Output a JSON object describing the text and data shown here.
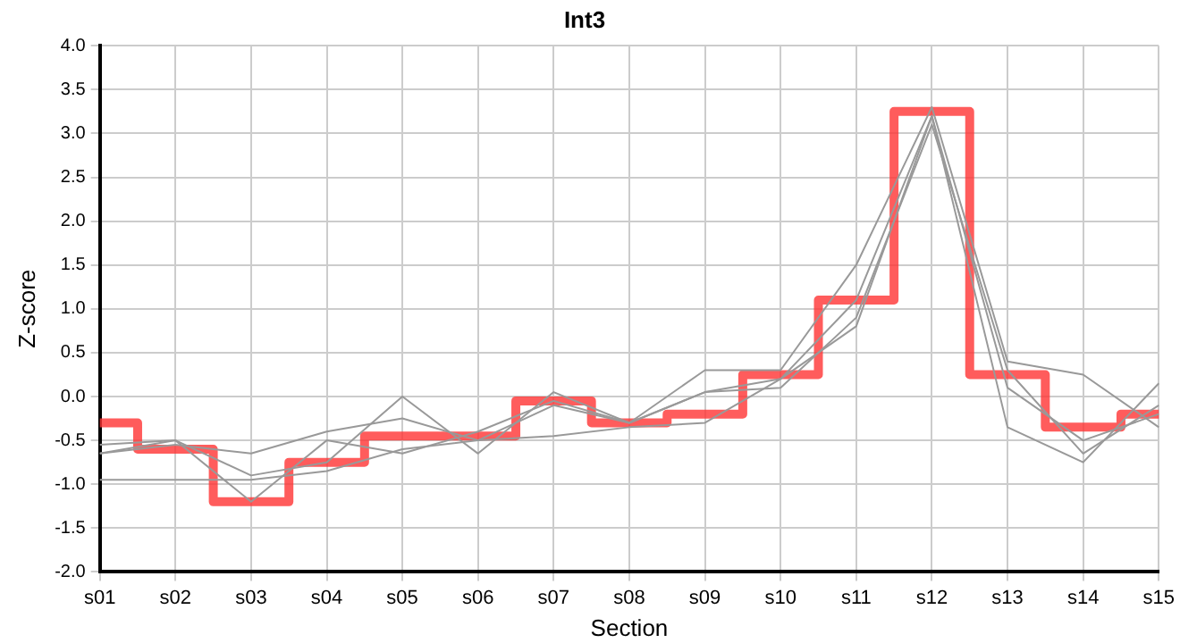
{
  "chart_data": {
    "type": "line",
    "title": "Int3",
    "xlabel": "Section",
    "ylabel": "Z-score",
    "categories": [
      "s01",
      "s02",
      "s03",
      "s04",
      "s05",
      "s06",
      "s07",
      "s08",
      "s09",
      "s10",
      "s11",
      "s12",
      "s13",
      "s14",
      "s15"
    ],
    "series": [
      {
        "color": "#999999",
        "values": [
          -0.65,
          -0.55,
          -0.65,
          -0.4,
          -0.25,
          -0.5,
          -0.1,
          -0.3,
          0.3,
          0.3,
          1.5,
          3.3,
          0.4,
          0.25,
          -0.35
        ]
      },
      {
        "color": "#999999",
        "values": [
          -0.95,
          -0.95,
          -0.95,
          -0.85,
          -0.6,
          -0.5,
          -0.45,
          -0.35,
          -0.3,
          0.2,
          0.8,
          3.2,
          -0.35,
          -0.75,
          0.15
        ]
      },
      {
        "color": "#999999",
        "values": [
          -0.55,
          -0.5,
          -1.2,
          -0.5,
          -0.65,
          -0.4,
          -0.05,
          -0.3,
          0.05,
          0.1,
          0.9,
          3.1,
          0.3,
          -0.65,
          -0.1
        ]
      },
      {
        "color": "#999999",
        "values": [
          -0.65,
          -0.5,
          -0.9,
          -0.75,
          0.0,
          -0.65,
          0.05,
          -0.3,
          0.05,
          0.2,
          1.1,
          3.2,
          0.1,
          -0.5,
          -0.2
        ]
      },
      {
        "type": "step",
        "color": "#ff3333",
        "values": [
          -0.3,
          -0.6,
          -1.2,
          -0.75,
          -0.45,
          -0.45,
          -0.05,
          -0.3,
          -0.2,
          0.25,
          1.1,
          3.25,
          0.25,
          -0.35,
          -0.2
        ]
      }
    ],
    "ylim": [
      -2,
      4
    ],
    "yticks": [
      {
        "value": -2,
        "label": "-2.0"
      },
      {
        "value": -1.5,
        "label": "-1.5"
      },
      {
        "value": -1,
        "label": "-1.0"
      },
      {
        "value": -0.5,
        "label": "-0.5"
      },
      {
        "value": 0,
        "label": "0.0"
      },
      {
        "value": 0.5,
        "label": "0.5"
      },
      {
        "value": 1,
        "label": "1.0"
      },
      {
        "value": 1.5,
        "label": "1.5"
      },
      {
        "value": 2,
        "label": "2.0"
      },
      {
        "value": 2.5,
        "label": "2.5"
      },
      {
        "value": 3,
        "label": "3.0"
      },
      {
        "value": 3.5,
        "label": "3.5"
      },
      {
        "value": 4,
        "label": "4.0"
      }
    ],
    "grid": true,
    "legend": false,
    "marker": "none"
  }
}
